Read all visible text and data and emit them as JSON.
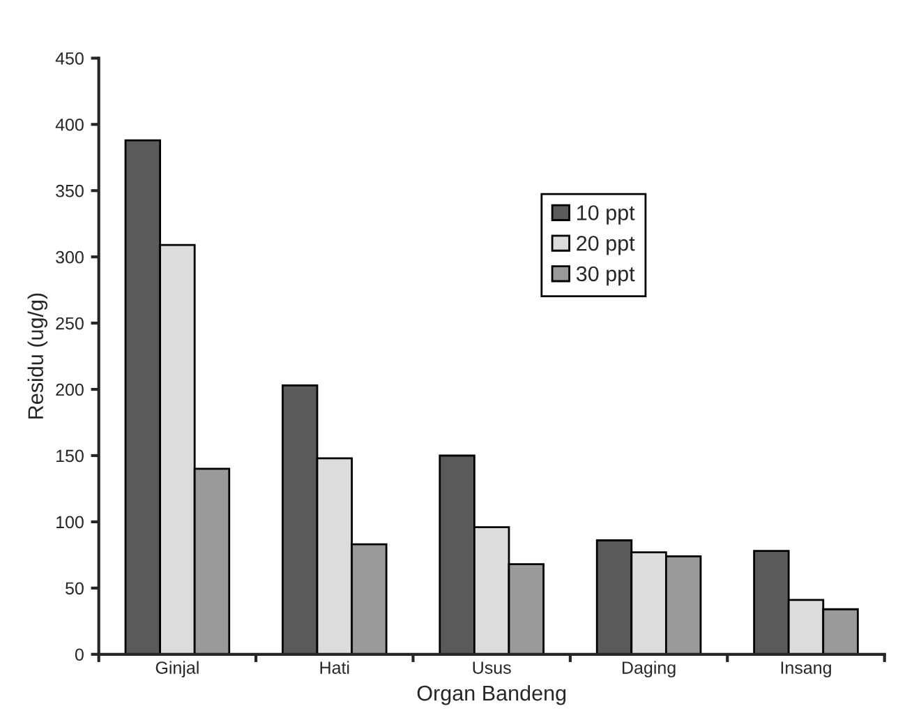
{
  "chart_data": {
    "type": "bar",
    "xlabel": "Organ Bandeng",
    "ylabel": "Residu (ug/g)",
    "categories": [
      "Ginjal",
      "Hati",
      "Usus",
      "Daging",
      "Insang"
    ],
    "series": [
      {
        "name": "10 ppt",
        "color": "#5a5a5a",
        "values": [
          388,
          203,
          150,
          86,
          78
        ]
      },
      {
        "name": "20 ppt",
        "color": "#dcdcdc",
        "values": [
          309,
          148,
          96,
          77,
          41
        ]
      },
      {
        "name": "30 ppt",
        "color": "#9a9a9a",
        "values": [
          140,
          83,
          68,
          74,
          34
        ]
      }
    ],
    "ylim": [
      0,
      450
    ],
    "yticks": [
      0,
      50,
      100,
      150,
      200,
      250,
      300,
      350,
      400,
      450
    ],
    "grid": false,
    "legend": "top right"
  }
}
